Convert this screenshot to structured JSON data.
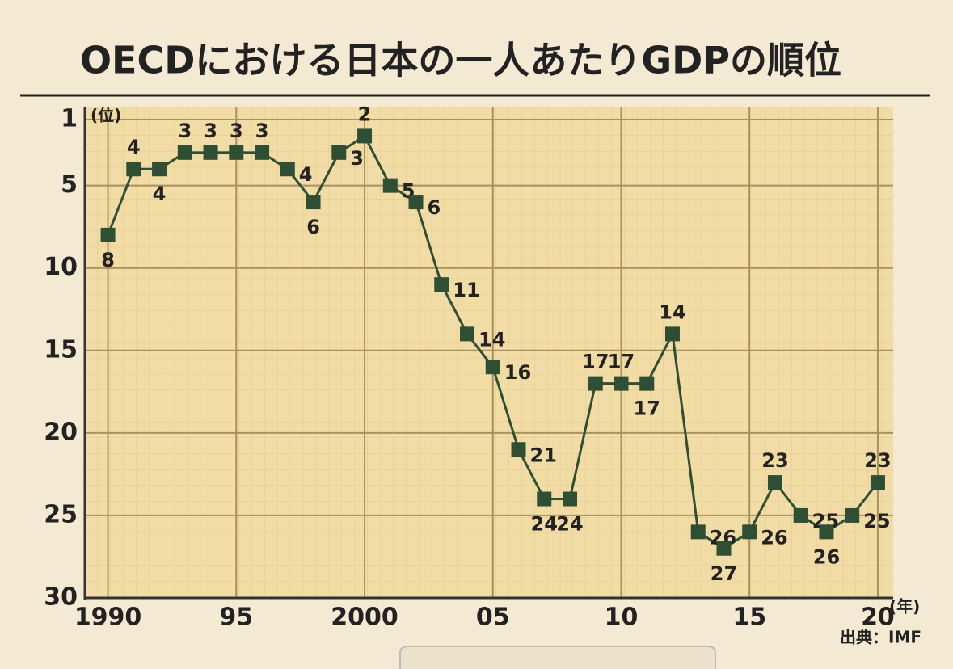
{
  "chart_data": {
    "type": "line",
    "title": "OECDにおける日本の一人あたりGDPの順位",
    "y_unit": "(位)",
    "x_unit": "(年)",
    "source": "出典：IMF",
    "x": [
      1990,
      1991,
      1992,
      1993,
      1994,
      1995,
      1996,
      1997,
      1998,
      1999,
      2000,
      2001,
      2002,
      2003,
      2004,
      2005,
      2006,
      2007,
      2008,
      2009,
      2010,
      2011,
      2012,
      2013,
      2014,
      2015,
      2016,
      2017,
      2018,
      2019,
      2020
    ],
    "series": [
      {
        "color": "#2f4f35",
        "values": [
          8,
          4,
          4,
          3,
          3,
          3,
          3,
          4,
          6,
          3,
          2,
          5,
          6,
          11,
          14,
          16,
          21,
          24,
          24,
          17,
          17,
          17,
          14,
          26,
          27,
          26,
          23,
          25,
          26,
          25,
          23
        ]
      }
    ],
    "xlim": [
      1989.1,
      2020.6
    ],
    "xticks": [
      1990,
      {
        "value": 1995,
        "label": "95"
      },
      2000,
      {
        "value": 2005,
        "label": "05"
      },
      {
        "value": 2010,
        "label": "10"
      },
      {
        "value": 2015,
        "label": "15"
      },
      {
        "value": 2020,
        "label": "20"
      }
    ],
    "ylim": [
      30,
      1
    ],
    "yticks": [
      1,
      5,
      10,
      15,
      20,
      25,
      30
    ],
    "grid": true
  }
}
